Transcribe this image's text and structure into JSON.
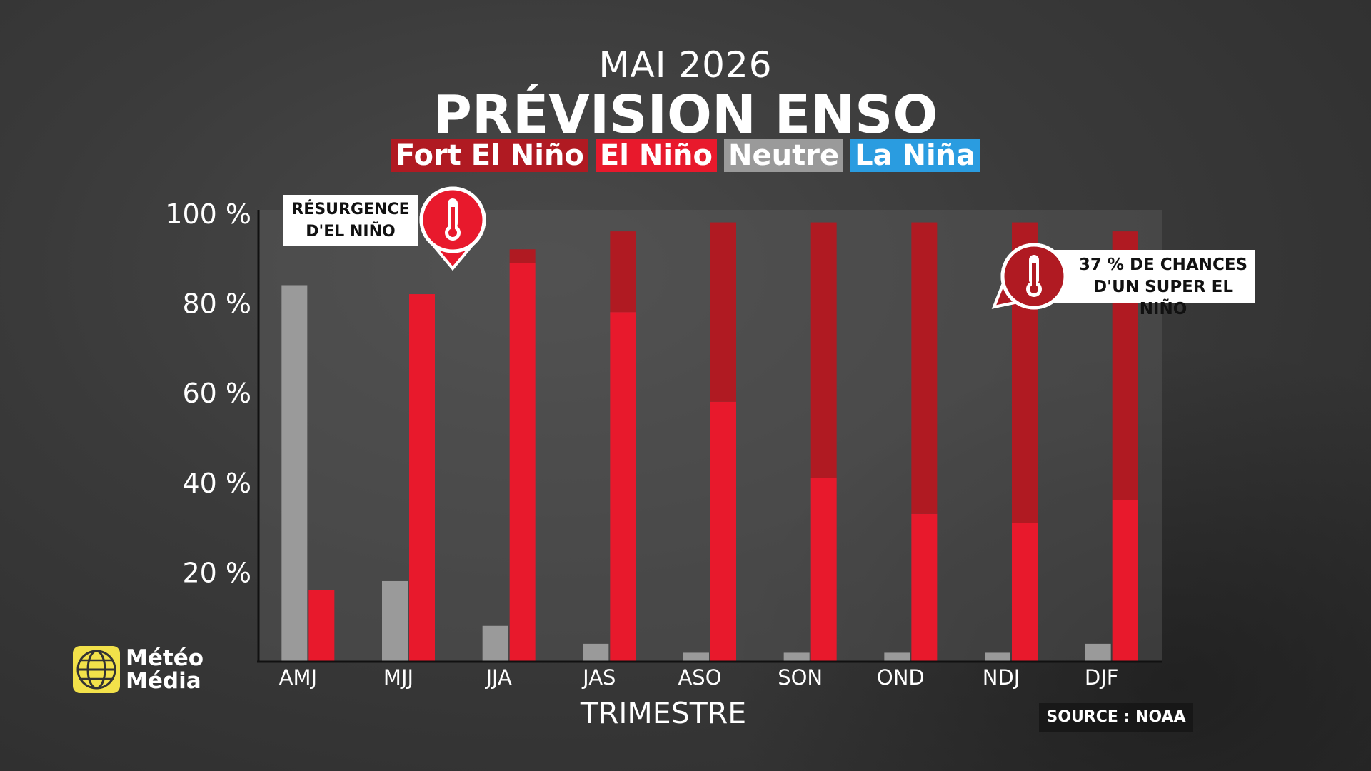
{
  "header": {
    "subtitle": "MAI 2026",
    "title": "PRÉVISION ENSO"
  },
  "legend": [
    {
      "label": "Fort El Niño",
      "color": "#b01a22"
    },
    {
      "label": "El Niño",
      "color": "#e8192c"
    },
    {
      "label": "Neutre",
      "color": "#9a9a9a"
    },
    {
      "label": "La Niña",
      "color": "#2a9ce0"
    }
  ],
  "callouts": {
    "left": {
      "line1": "RÉSURGENCE",
      "line2": "D'EL NIÑO",
      "icon": "thermometer-icon"
    },
    "right": {
      "line1": "37 % DE CHANCES",
      "line2": "D'UN SUPER EL NIÑO",
      "icon": "thermometer-icon"
    }
  },
  "logo": {
    "line1": "Météo",
    "line2": "Média"
  },
  "source": "SOURCE : NOAA",
  "chart_data": {
    "type": "bar",
    "stacked_series": [
      "El Niño",
      "Fort El Niño"
    ],
    "categories": [
      "AMJ",
      "MJJ",
      "JJA",
      "JAS",
      "ASO",
      "SON",
      "OND",
      "NDJ",
      "DJF"
    ],
    "series": [
      {
        "name": "Neutre",
        "color": "#9a9a9a",
        "values": [
          84,
          18,
          8,
          4,
          2,
          2,
          2,
          2,
          4
        ]
      },
      {
        "name": "El Niño",
        "color": "#e8192c",
        "values": [
          16,
          82,
          89,
          78,
          58,
          41,
          33,
          31,
          36
        ]
      },
      {
        "name": "Fort El Niño",
        "color": "#b01a22",
        "values": [
          0,
          0,
          3,
          18,
          40,
          57,
          65,
          67,
          60
        ]
      }
    ],
    "xlabel": "TRIMESTRE",
    "ylabel": "",
    "ylim": [
      0,
      100
    ],
    "yticks": [
      20,
      40,
      60,
      80,
      100
    ],
    "ytick_labels": [
      "20 %",
      "40 %",
      "60 %",
      "80 %",
      "100 %"
    ]
  }
}
